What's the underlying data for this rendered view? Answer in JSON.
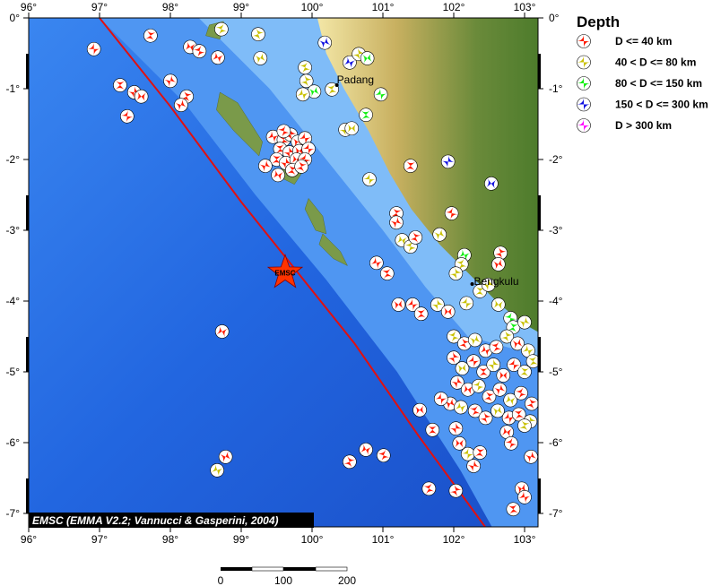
{
  "map": {
    "lon_range": [
      96,
      103.2
    ],
    "lat_range": [
      -7.2,
      0
    ],
    "lon_ticks": [
      "96°",
      "97°",
      "98°",
      "99°",
      "100°",
      "101°",
      "102°",
      "103°"
    ],
    "lat_ticks": [
      "0°",
      "-1°",
      "-2°",
      "-3°",
      "-4°",
      "-5°",
      "-6°",
      "-7°"
    ],
    "credit": "EMSC (EMMA V2.2; Vannucci & Gasperini, 2004)",
    "epicenter": {
      "label": "EMSC",
      "lon": 99.62,
      "lat": -3.6,
      "color": "#ff3300"
    },
    "cities": [
      {
        "name": "Padang",
        "lon": 100.35,
        "lat": -0.95
      },
      {
        "name": "Bengkulu",
        "lon": 102.26,
        "lat": -3.76
      }
    ],
    "trench": [
      [
        97.0,
        0
      ],
      [
        98.0,
        -1.25
      ],
      [
        99.0,
        -2.6
      ],
      [
        99.8,
        -3.6
      ],
      [
        100.6,
        -4.6
      ],
      [
        101.5,
        -5.9
      ],
      [
        102.45,
        -7.2
      ]
    ],
    "trench_color": "#e01010"
  },
  "scale_bar": {
    "labels": [
      "0",
      "100",
      "200"
    ],
    "unit_max_km": 200
  },
  "legend": {
    "title": "Depth",
    "items": [
      {
        "label": "D <= 40 km",
        "color": "#ff1a00"
      },
      {
        "label": "40 < D <= 80 km",
        "color": "#c8c000"
      },
      {
        "label": "80 < D <= 150 km",
        "color": "#10ee10"
      },
      {
        "label": "150 < D <= 300 km",
        "color": "#1010e0"
      },
      {
        "label": "D > 300 km",
        "color": "#ff10ff"
      }
    ]
  },
  "events": [
    [
      96.92,
      -0.44,
      0
    ],
    [
      97.29,
      -0.95,
      0
    ],
    [
      97.49,
      -1.05,
      0
    ],
    [
      97.59,
      -1.11,
      0
    ],
    [
      97.39,
      -1.39,
      0
    ],
    [
      97.72,
      -0.25,
      0
    ],
    [
      98.0,
      -0.89,
      0
    ],
    [
      98.28,
      -0.41,
      0
    ],
    [
      98.41,
      -0.47,
      0
    ],
    [
      98.23,
      -1.11,
      0
    ],
    [
      98.15,
      -1.23,
      0
    ],
    [
      98.67,
      -0.56,
      0
    ],
    [
      98.72,
      -0.16,
      1
    ],
    [
      99.24,
      -0.23,
      1
    ],
    [
      99.27,
      -0.57,
      1
    ],
    [
      99.45,
      -1.68,
      0
    ],
    [
      99.6,
      -1.72,
      0
    ],
    [
      99.7,
      -1.65,
      0
    ],
    [
      99.8,
      -1.75,
      0
    ],
    [
      99.9,
      -1.7,
      0
    ],
    [
      99.55,
      -1.85,
      0
    ],
    [
      99.68,
      -1.9,
      0
    ],
    [
      99.82,
      -1.88,
      0
    ],
    [
      99.95,
      -1.85,
      0
    ],
    [
      99.5,
      -2.0,
      0
    ],
    [
      99.63,
      -2.05,
      0
    ],
    [
      99.78,
      -2.0,
      0
    ],
    [
      99.9,
      -2.0,
      0
    ],
    [
      99.72,
      -2.15,
      0
    ],
    [
      99.34,
      -2.09,
      0
    ],
    [
      99.52,
      -2.22,
      0
    ],
    [
      99.6,
      -1.6,
      0
    ],
    [
      99.85,
      -2.1,
      0
    ],
    [
      100.18,
      -0.35,
      3
    ],
    [
      100.53,
      -0.63,
      3
    ],
    [
      99.9,
      -0.7,
      1
    ],
    [
      99.92,
      -0.89,
      1
    ],
    [
      100.03,
      -1.04,
      2
    ],
    [
      99.87,
      -1.08,
      1
    ],
    [
      100.28,
      -1.01,
      1
    ],
    [
      100.66,
      -0.51,
      1
    ],
    [
      100.78,
      -0.57,
      2
    ],
    [
      100.97,
      -1.08,
      2
    ],
    [
      100.76,
      -1.37,
      2
    ],
    [
      100.47,
      -1.58,
      1
    ],
    [
      100.56,
      -1.56,
      1
    ],
    [
      100.81,
      -2.28,
      1
    ],
    [
      101.39,
      -2.09,
      0
    ],
    [
      101.92,
      -2.03,
      3
    ],
    [
      102.53,
      -2.34,
      3
    ],
    [
      101.97,
      -2.76,
      0
    ],
    [
      101.19,
      -2.76,
      0
    ],
    [
      101.19,
      -2.89,
      0
    ],
    [
      101.27,
      -3.14,
      1
    ],
    [
      101.39,
      -3.23,
      1
    ],
    [
      101.46,
      -3.1,
      0
    ],
    [
      101.8,
      -3.06,
      1
    ],
    [
      102.15,
      -3.35,
      2
    ],
    [
      102.11,
      -3.48,
      1
    ],
    [
      102.66,
      -3.32,
      0
    ],
    [
      102.63,
      -3.48,
      0
    ],
    [
      100.91,
      -3.46,
      0
    ],
    [
      101.06,
      -3.61,
      0
    ],
    [
      102.03,
      -3.61,
      1
    ],
    [
      101.22,
      -4.05,
      0
    ],
    [
      101.42,
      -4.05,
      0
    ],
    [
      101.54,
      -4.18,
      0
    ],
    [
      101.77,
      -4.05,
      1
    ],
    [
      101.92,
      -4.15,
      0
    ],
    [
      102.18,
      -4.03,
      1
    ],
    [
      102.37,
      -3.86,
      1
    ],
    [
      102.49,
      -3.77,
      1
    ],
    [
      102.63,
      -4.05,
      1
    ],
    [
      102.8,
      -4.24,
      2
    ],
    [
      102.84,
      -4.37,
      2
    ],
    [
      103.0,
      -4.3,
      1
    ],
    [
      98.73,
      -4.43,
      0
    ],
    [
      102.0,
      -4.5,
      1
    ],
    [
      102.15,
      -4.6,
      0
    ],
    [
      102.3,
      -4.55,
      1
    ],
    [
      102.45,
      -4.7,
      0
    ],
    [
      102.6,
      -4.65,
      0
    ],
    [
      102.75,
      -4.5,
      1
    ],
    [
      102.9,
      -4.6,
      0
    ],
    [
      103.05,
      -4.7,
      1
    ],
    [
      103.12,
      -4.85,
      1
    ],
    [
      102.0,
      -4.8,
      0
    ],
    [
      102.12,
      -4.95,
      1
    ],
    [
      102.28,
      -4.85,
      0
    ],
    [
      102.42,
      -5.0,
      0
    ],
    [
      102.56,
      -4.9,
      1
    ],
    [
      102.7,
      -5.05,
      0
    ],
    [
      102.85,
      -4.9,
      0
    ],
    [
      103.0,
      -5.0,
      1
    ],
    [
      102.05,
      -5.15,
      0
    ],
    [
      102.2,
      -5.25,
      0
    ],
    [
      102.35,
      -5.2,
      1
    ],
    [
      102.5,
      -5.35,
      0
    ],
    [
      102.65,
      -5.25,
      0
    ],
    [
      102.8,
      -5.4,
      1
    ],
    [
      102.95,
      -5.3,
      0
    ],
    [
      103.1,
      -5.45,
      0
    ],
    [
      101.95,
      -5.45,
      0
    ],
    [
      102.1,
      -5.5,
      1
    ],
    [
      102.3,
      -5.55,
      0
    ],
    [
      102.45,
      -5.65,
      0
    ],
    [
      102.62,
      -5.55,
      1
    ],
    [
      102.78,
      -5.65,
      0
    ],
    [
      102.92,
      -5.6,
      0
    ],
    [
      103.08,
      -5.7,
      1
    ],
    [
      101.52,
      -5.54,
      0
    ],
    [
      101.82,
      -5.38,
      0
    ],
    [
      101.7,
      -5.82,
      0
    ],
    [
      102.03,
      -5.8,
      0
    ],
    [
      102.08,
      -6.01,
      0
    ],
    [
      102.2,
      -6.16,
      1
    ],
    [
      102.37,
      -6.14,
      0
    ],
    [
      102.28,
      -6.33,
      0
    ],
    [
      102.75,
      -5.85,
      0
    ],
    [
      102.81,
      -6.01,
      0
    ],
    [
      103.0,
      -5.76,
      1
    ],
    [
      103.09,
      -6.2,
      0
    ],
    [
      100.76,
      -6.1,
      0
    ],
    [
      101.01,
      -6.18,
      0
    ],
    [
      100.53,
      -6.27,
      0
    ],
    [
      98.78,
      -6.2,
      0
    ],
    [
      98.66,
      -6.39,
      1
    ],
    [
      101.65,
      -6.65,
      0
    ],
    [
      102.03,
      -6.68,
      0
    ],
    [
      102.96,
      -6.65,
      0
    ],
    [
      103.0,
      -6.77,
      0
    ],
    [
      102.84,
      -6.94,
      0
    ]
  ]
}
